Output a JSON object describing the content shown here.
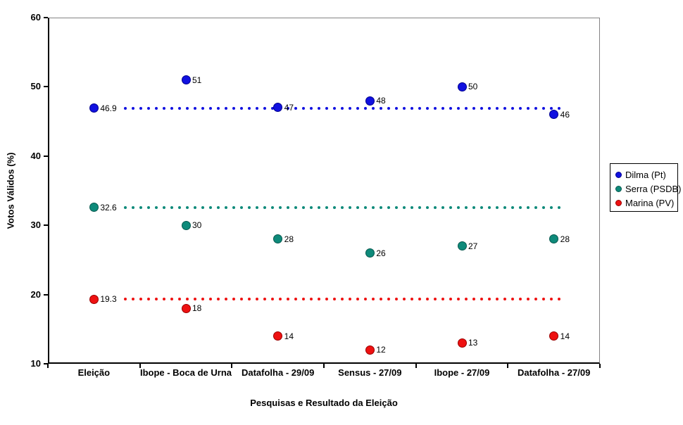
{
  "chart_data": {
    "type": "scatter",
    "title": "",
    "xlabel": "Pesquisas e Resultado da Eleição",
    "ylabel": "Votos Válidos (%)",
    "ylim": [
      10,
      60
    ],
    "yticks": [
      60,
      50,
      40,
      30,
      20,
      10
    ],
    "grid": false,
    "legend_position": "right",
    "categories": [
      "Eleição",
      "Ibope - Boca de Urna",
      "Datafolha - 29/09",
      "Sensus - 27/09",
      "Ibope - 27/09",
      "Datafolha - 27/09"
    ],
    "series": [
      {
        "name": "Dilma (Pt)",
        "color": "#1111E0",
        "edge_color": "#000090",
        "values": [
          46.9,
          51,
          47,
          48,
          50,
          46
        ],
        "labels": [
          "46.9",
          "51",
          "47",
          "48",
          "50",
          "46"
        ],
        "reference_line": 46.9
      },
      {
        "name": "Serra (PSDB)",
        "color": "#0E8A7A",
        "edge_color": "#07594F",
        "values": [
          32.6,
          30,
          28,
          26,
          27,
          28
        ],
        "labels": [
          "32.6",
          "30",
          "28",
          "26",
          "27",
          "28"
        ],
        "reference_line": 32.6
      },
      {
        "name": "Marina (PV)",
        "color": "#EE1111",
        "edge_color": "#9B0000",
        "values": [
          19.3,
          18,
          14,
          12,
          13,
          14
        ],
        "labels": [
          "19.3",
          "18",
          "14",
          "12",
          "13",
          "14"
        ],
        "reference_line": 19.3
      }
    ]
  }
}
